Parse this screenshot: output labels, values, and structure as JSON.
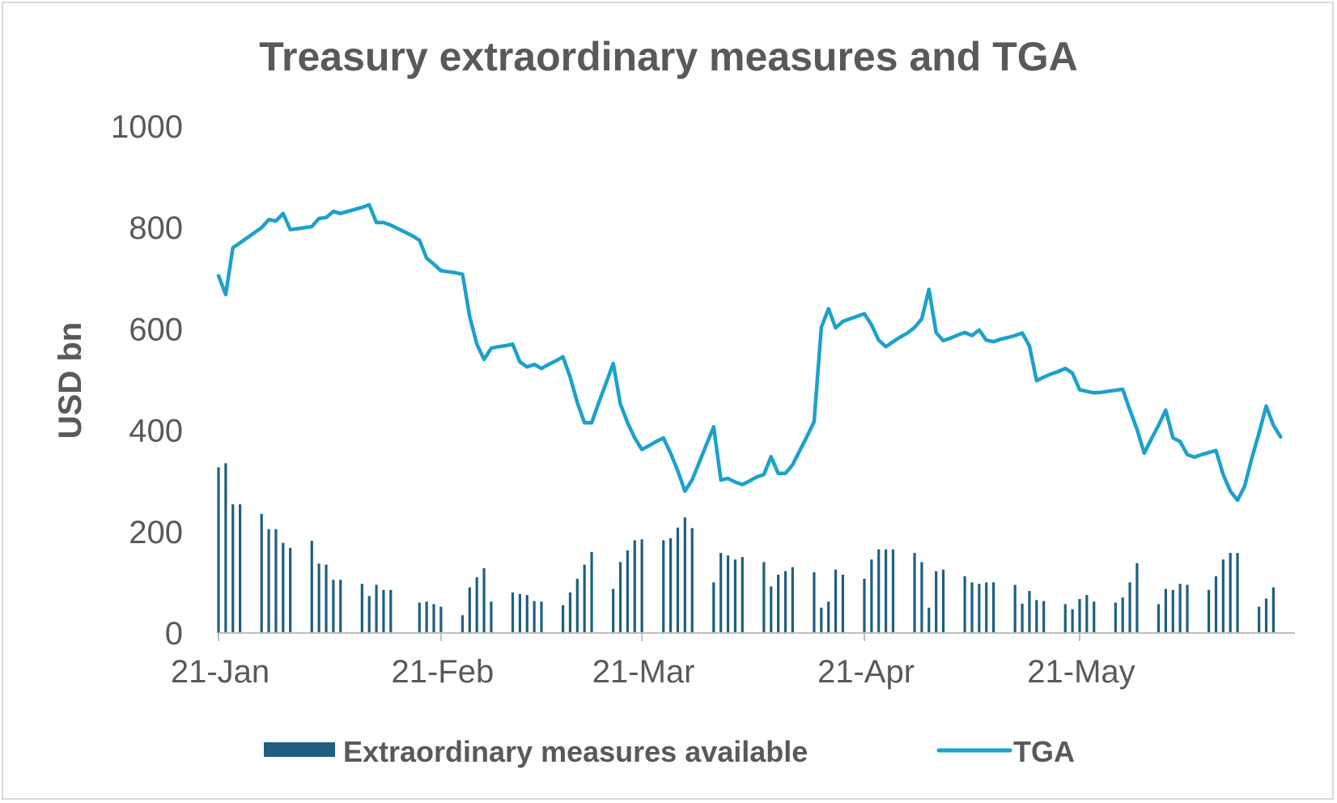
{
  "chart_data": {
    "type": "bar+line",
    "title": "Treasury extraordinary measures and TGA",
    "ylabel": "USD bn",
    "xlabel": "",
    "ylim": [
      0,
      1000
    ],
    "yticks": [
      0,
      200,
      400,
      600,
      800,
      1000
    ],
    "xrange_days": [
      0,
      150
    ],
    "xticks": [
      {
        "label": "21-Jan",
        "day": 0
      },
      {
        "label": "21-Feb",
        "day": 31
      },
      {
        "label": "21-Mar",
        "day": 59
      },
      {
        "label": "21-Apr",
        "day": 90
      },
      {
        "label": "21-May",
        "day": 120
      }
    ],
    "series": [
      {
        "name": "Extraordinary measures available",
        "kind": "bar",
        "color": "#1f5f7f",
        "points": [
          [
            0,
            327
          ],
          [
            1,
            335
          ],
          [
            2,
            254
          ],
          [
            3,
            254
          ],
          [
            6,
            235
          ],
          [
            7,
            205
          ],
          [
            8,
            205
          ],
          [
            9,
            178
          ],
          [
            10,
            168
          ],
          [
            13,
            182
          ],
          [
            14,
            137
          ],
          [
            15,
            135
          ],
          [
            16,
            105
          ],
          [
            17,
            105
          ],
          [
            20,
            97
          ],
          [
            21,
            73
          ],
          [
            22,
            95
          ],
          [
            23,
            85
          ],
          [
            24,
            85
          ],
          [
            28,
            60
          ],
          [
            29,
            62
          ],
          [
            30,
            57
          ],
          [
            31,
            52
          ],
          [
            34,
            35
          ],
          [
            35,
            90
          ],
          [
            36,
            110
          ],
          [
            37,
            128
          ],
          [
            38,
            62
          ],
          [
            41,
            80
          ],
          [
            42,
            77
          ],
          [
            43,
            75
          ],
          [
            44,
            63
          ],
          [
            45,
            62
          ],
          [
            48,
            55
          ],
          [
            49,
            80
          ],
          [
            50,
            107
          ],
          [
            51,
            135
          ],
          [
            52,
            160
          ],
          [
            55,
            87
          ],
          [
            56,
            140
          ],
          [
            57,
            163
          ],
          [
            58,
            183
          ],
          [
            59,
            185
          ],
          [
            62,
            183
          ],
          [
            63,
            187
          ],
          [
            64,
            208
          ],
          [
            65,
            228
          ],
          [
            66,
            207
          ],
          [
            69,
            100
          ],
          [
            70,
            158
          ],
          [
            71,
            153
          ],
          [
            72,
            145
          ],
          [
            73,
            150
          ],
          [
            76,
            140
          ],
          [
            77,
            92
          ],
          [
            78,
            115
          ],
          [
            79,
            122
          ],
          [
            80,
            130
          ],
          [
            83,
            120
          ],
          [
            84,
            50
          ],
          [
            85,
            62
          ],
          [
            86,
            125
          ],
          [
            87,
            115
          ],
          [
            90,
            107
          ],
          [
            91,
            145
          ],
          [
            92,
            165
          ],
          [
            93,
            165
          ],
          [
            94,
            165
          ],
          [
            97,
            158
          ],
          [
            98,
            140
          ],
          [
            99,
            50
          ],
          [
            100,
            122
          ],
          [
            101,
            125
          ],
          [
            104,
            112
          ],
          [
            105,
            100
          ],
          [
            106,
            97
          ],
          [
            107,
            100
          ],
          [
            108,
            100
          ],
          [
            111,
            95
          ],
          [
            112,
            58
          ],
          [
            113,
            83
          ],
          [
            114,
            65
          ],
          [
            115,
            63
          ],
          [
            118,
            57
          ],
          [
            119,
            47
          ],
          [
            120,
            67
          ],
          [
            121,
            75
          ],
          [
            122,
            62
          ],
          [
            125,
            60
          ],
          [
            126,
            70
          ],
          [
            127,
            100
          ],
          [
            128,
            138
          ],
          [
            131,
            57
          ],
          [
            132,
            87
          ],
          [
            133,
            85
          ],
          [
            134,
            97
          ],
          [
            135,
            95
          ],
          [
            138,
            85
          ],
          [
            139,
            112
          ],
          [
            140,
            145
          ],
          [
            141,
            158
          ],
          [
            142,
            158
          ],
          [
            145,
            52
          ],
          [
            146,
            68
          ],
          [
            147,
            90
          ]
        ]
      },
      {
        "name": "TGA",
        "kind": "line",
        "color": "#1ba1cc",
        "points": [
          [
            0,
            705
          ],
          [
            1,
            668
          ],
          [
            2,
            760
          ],
          [
            3,
            770
          ],
          [
            4,
            780
          ],
          [
            5,
            790
          ],
          [
            6,
            800
          ],
          [
            7,
            816
          ],
          [
            8,
            813
          ],
          [
            9,
            828
          ],
          [
            10,
            796
          ],
          [
            11,
            798
          ],
          [
            12,
            800
          ],
          [
            13,
            802
          ],
          [
            14,
            818
          ],
          [
            15,
            820
          ],
          [
            16,
            832
          ],
          [
            17,
            828
          ],
          [
            18,
            832
          ],
          [
            19,
            836
          ],
          [
            20,
            840
          ],
          [
            21,
            845
          ],
          [
            22,
            810
          ],
          [
            23,
            810
          ],
          [
            24,
            805
          ],
          [
            25,
            798
          ],
          [
            26,
            791
          ],
          [
            27,
            784
          ],
          [
            28,
            775
          ],
          [
            29,
            740
          ],
          [
            30,
            728
          ],
          [
            31,
            715
          ],
          [
            32,
            713
          ],
          [
            33,
            711
          ],
          [
            34,
            708
          ],
          [
            35,
            625
          ],
          [
            36,
            570
          ],
          [
            37,
            540
          ],
          [
            38,
            562
          ],
          [
            39,
            565
          ],
          [
            40,
            567
          ],
          [
            41,
            570
          ],
          [
            42,
            535
          ],
          [
            43,
            525
          ],
          [
            44,
            530
          ],
          [
            45,
            522
          ],
          [
            46,
            530
          ],
          [
            47,
            537
          ],
          [
            48,
            545
          ],
          [
            49,
            505
          ],
          [
            50,
            455
          ],
          [
            51,
            415
          ],
          [
            52,
            415
          ],
          [
            53,
            455
          ],
          [
            54,
            493
          ],
          [
            55,
            532
          ],
          [
            56,
            452
          ],
          [
            57,
            415
          ],
          [
            58,
            385
          ],
          [
            59,
            362
          ],
          [
            60,
            370
          ],
          [
            61,
            378
          ],
          [
            62,
            385
          ],
          [
            63,
            355
          ],
          [
            64,
            320
          ],
          [
            65,
            280
          ],
          [
            66,
            302
          ],
          [
            67,
            337
          ],
          [
            68,
            372
          ],
          [
            69,
            407
          ],
          [
            70,
            302
          ],
          [
            71,
            305
          ],
          [
            72,
            298
          ],
          [
            73,
            293
          ],
          [
            74,
            300
          ],
          [
            75,
            308
          ],
          [
            76,
            313
          ],
          [
            77,
            348
          ],
          [
            78,
            315
          ],
          [
            79,
            315
          ],
          [
            80,
            332
          ],
          [
            81,
            360
          ],
          [
            82,
            388
          ],
          [
            83,
            417
          ],
          [
            84,
            603
          ],
          [
            85,
            640
          ],
          [
            86,
            602
          ],
          [
            87,
            615
          ],
          [
            88,
            620
          ],
          [
            89,
            625
          ],
          [
            90,
            630
          ],
          [
            91,
            608
          ],
          [
            92,
            578
          ],
          [
            93,
            565
          ],
          [
            94,
            575
          ],
          [
            95,
            584
          ],
          [
            96,
            592
          ],
          [
            97,
            603
          ],
          [
            98,
            620
          ],
          [
            99,
            678
          ],
          [
            100,
            593
          ],
          [
            101,
            577
          ],
          [
            102,
            582
          ],
          [
            103,
            588
          ],
          [
            104,
            593
          ],
          [
            105,
            587
          ],
          [
            106,
            598
          ],
          [
            107,
            578
          ],
          [
            108,
            575
          ],
          [
            109,
            580
          ],
          [
            110,
            583
          ],
          [
            111,
            587
          ],
          [
            112,
            592
          ],
          [
            113,
            567
          ],
          [
            114,
            498
          ],
          [
            115,
            505
          ],
          [
            116,
            511
          ],
          [
            117,
            516
          ],
          [
            118,
            522
          ],
          [
            119,
            513
          ],
          [
            120,
            480
          ],
          [
            121,
            477
          ],
          [
            122,
            474
          ],
          [
            123,
            475
          ],
          [
            124,
            477
          ],
          [
            125,
            479
          ],
          [
            126,
            481
          ],
          [
            127,
            440
          ],
          [
            128,
            402
          ],
          [
            129,
            355
          ],
          [
            130,
            383
          ],
          [
            131,
            410
          ],
          [
            132,
            440
          ],
          [
            133,
            385
          ],
          [
            134,
            378
          ],
          [
            135,
            352
          ],
          [
            136,
            347
          ],
          [
            137,
            352
          ],
          [
            138,
            356
          ],
          [
            139,
            360
          ],
          [
            140,
            313
          ],
          [
            141,
            280
          ],
          [
            142,
            262
          ],
          [
            143,
            290
          ],
          [
            144,
            345
          ],
          [
            145,
            395
          ],
          [
            146,
            448
          ],
          [
            147,
            410
          ],
          [
            148,
            387
          ]
        ]
      }
    ],
    "legend": {
      "position": "bottom-center",
      "entries": [
        "Extraordinary measures available",
        "TGA"
      ]
    }
  }
}
